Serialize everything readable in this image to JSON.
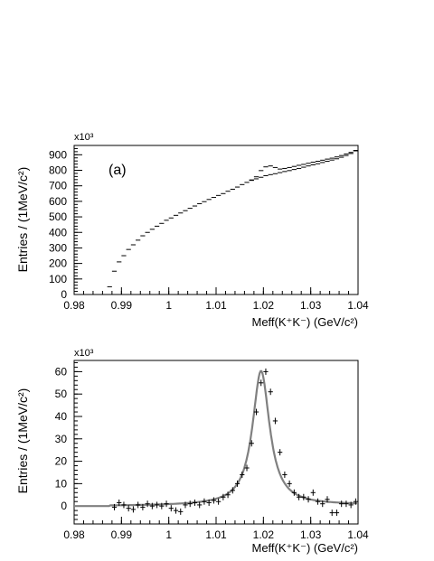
{
  "chart_data": [
    {
      "type": "scatter",
      "panel_label": "(a)",
      "xlabel": "Meff(K⁺K⁻)  (GeV/c²)",
      "ylabel": "Entries / (1MeV/c²)",
      "y_multiplier": "x10³",
      "xlim": [
        0.98,
        1.04
      ],
      "ylim": [
        0,
        960
      ],
      "x_ticks": [
        "0.98",
        "0.99",
        "1",
        "1.01",
        "1.02",
        "1.03",
        "1.04"
      ],
      "y_ticks": [
        "0",
        "100",
        "200",
        "300",
        "400",
        "500",
        "600",
        "700",
        "800",
        "900"
      ],
      "grid": false,
      "series": [
        {
          "x": [
            0.9875,
            0.9885,
            0.9895,
            0.9905,
            0.9915,
            0.9925,
            0.9935,
            0.9945,
            0.9955,
            0.9965,
            0.9975,
            0.9985,
            0.9995,
            1.0005,
            1.0015,
            1.0025,
            1.0035,
            1.0045,
            1.0055,
            1.0065,
            1.0075,
            1.0085,
            1.0095,
            1.0105,
            1.0115,
            1.0125,
            1.0135,
            1.0145,
            1.0155,
            1.0165,
            1.0175,
            1.0185,
            1.0195,
            1.0205,
            1.0215,
            1.0225,
            1.0235,
            1.0245,
            1.0255,
            1.0265,
            1.0275,
            1.0285,
            1.0295,
            1.0305,
            1.0315,
            1.0325,
            1.0335,
            1.0345,
            1.0355,
            1.0365,
            1.0375,
            1.0385,
            1.0395
          ],
          "y": [
            50,
            150,
            210,
            250,
            290,
            320,
            350,
            378,
            400,
            420,
            440,
            458,
            478,
            493,
            510,
            525,
            540,
            555,
            570,
            585,
            598,
            612,
            625,
            638,
            650,
            665,
            678,
            692,
            708,
            722,
            738,
            758,
            798,
            822,
            828,
            818,
            808,
            812,
            818,
            825,
            832,
            838,
            845,
            852,
            858,
            865,
            872,
            878,
            886,
            895,
            905,
            915,
            928
          ]
        },
        {
          "x": [
            1.0175,
            1.0185,
            1.0195,
            1.0205,
            1.0215,
            1.0225,
            1.0235,
            1.0245,
            1.0255,
            1.0265,
            1.0275,
            1.0285,
            1.0295,
            1.0305,
            1.0315,
            1.0325,
            1.0335,
            1.0345,
            1.0355,
            1.0365,
            1.0375,
            1.0385,
            1.0395
          ],
          "y": [
            735,
            745,
            755,
            765,
            772,
            778,
            785,
            792,
            798,
            805,
            812,
            820,
            828,
            835,
            842,
            850,
            858,
            866,
            874,
            884,
            895,
            908,
            925
          ]
        }
      ]
    },
    {
      "type": "scatter",
      "panel_label": "",
      "xlabel": "Meff(K⁺K⁻)  (GeV/c²)",
      "ylabel": "Entries / (1MeV/c²)",
      "y_multiplier": "x10³",
      "xlim": [
        0.98,
        1.04
      ],
      "ylim": [
        -8,
        65
      ],
      "x_ticks": [
        "0.98",
        "0.99",
        "1",
        "1.01",
        "1.02",
        "1.03",
        "1.04"
      ],
      "y_ticks": [
        "0",
        "10",
        "20",
        "30",
        "40",
        "50",
        "60"
      ],
      "grid": false,
      "series": [
        {
          "x": [
            0.9885,
            0.9895,
            0.9905,
            0.9915,
            0.9925,
            0.9935,
            0.9945,
            0.9955,
            0.9965,
            0.9975,
            0.9985,
            0.9995,
            1.0005,
            1.0015,
            1.0025,
            1.0035,
            1.0045,
            1.0055,
            1.0065,
            1.0075,
            1.0085,
            1.0095,
            1.0105,
            1.0115,
            1.0125,
            1.0135,
            1.0145,
            1.0155,
            1.0165,
            1.0175,
            1.0185,
            1.0195,
            1.0205,
            1.0215,
            1.0225,
            1.0235,
            1.0245,
            1.0255,
            1.0265,
            1.0275,
            1.0285,
            1.0295,
            1.0305,
            1.0315,
            1.0325,
            1.0335,
            1.0345,
            1.0355,
            1.0365,
            1.0375,
            1.0385,
            1.0395
          ],
          "y": [
            -0.5,
            1.5,
            0.5,
            -1,
            -1.5,
            0.5,
            -0.5,
            1,
            0,
            0.5,
            0,
            1,
            -1,
            -2,
            -2.5,
            0.5,
            1,
            1.5,
            0.5,
            2,
            1.5,
            2.5,
            2,
            4,
            5,
            7,
            10,
            14,
            17,
            28,
            42,
            55,
            60,
            51,
            38,
            24,
            14,
            10,
            6,
            4,
            4,
            3,
            6,
            2,
            1,
            3,
            -3,
            -3,
            1,
            1,
            0.5,
            2
          ]
        },
        {
          "fit_peak_x": 1.0195,
          "fit_peak_y": 60,
          "fit_width": 0.0022,
          "fit_tail": 0.0125
        }
      ]
    }
  ]
}
